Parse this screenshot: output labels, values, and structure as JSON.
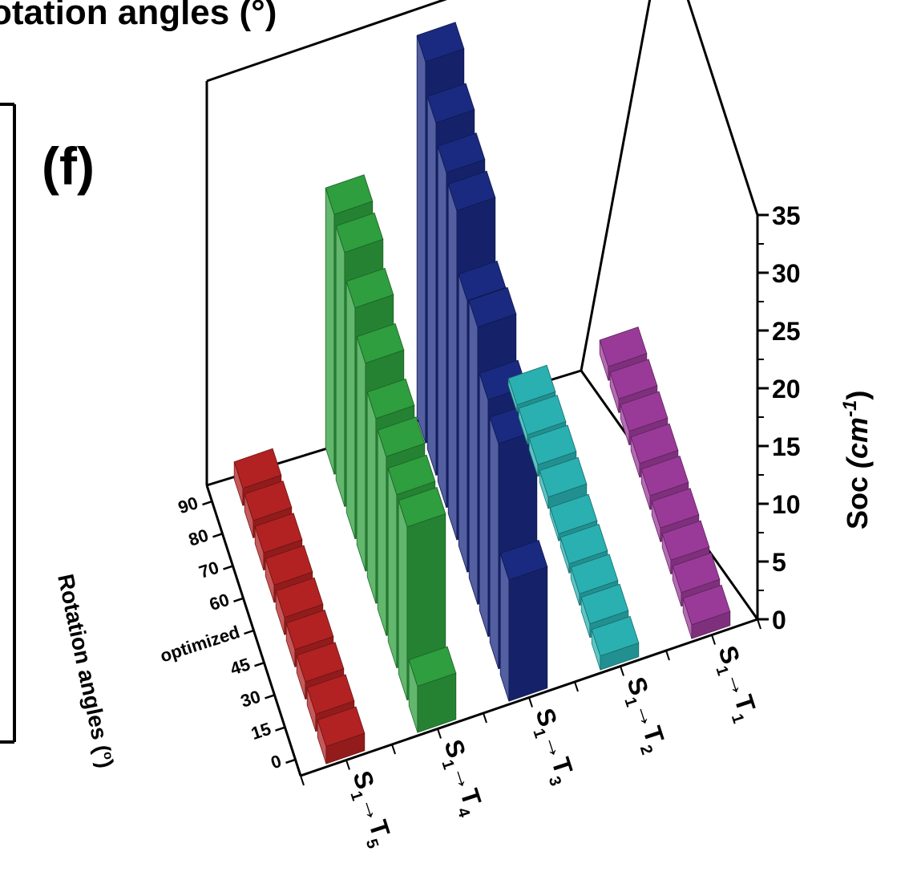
{
  "panel_label": "(f)",
  "cut_top_text": "otation angles (°)",
  "chart_data": {
    "type": "bar3d",
    "zlabel": "Soc (cm-1)",
    "zlabel_main": "Soc",
    "zlabel_unit": "(cm",
    "zlabel_exp": "-1",
    "zlabel_close": ")",
    "ylabel": "Rotation angles (°)",
    "ylabel_main": "Rotation angles (",
    "ylabel_deg": "o",
    "ylabel_close": ")",
    "zlim": [
      0,
      35
    ],
    "z_ticks": [
      "0",
      "5",
      "10",
      "15",
      "20",
      "25",
      "30",
      "35"
    ],
    "angles": [
      "0",
      "15",
      "30",
      "45",
      "optimized",
      "60",
      "70",
      "80",
      "90"
    ],
    "transitions": [
      {
        "base": "S",
        "sub1": "1",
        "arrow": "→",
        "tgt": "T",
        "sub2": "5",
        "name": "S1→T5"
      },
      {
        "base": "S",
        "sub1": "1",
        "arrow": "→",
        "tgt": "T",
        "sub2": "4",
        "name": "S1→T4"
      },
      {
        "base": "S",
        "sub1": "1",
        "arrow": "→",
        "tgt": "T",
        "sub2": "3",
        "name": "S1→T3"
      },
      {
        "base": "S",
        "sub1": "1",
        "arrow": "→",
        "tgt": "T",
        "sub2": "2",
        "name": "S1→T2"
      },
      {
        "base": "S",
        "sub1": "1",
        "arrow": "→",
        "tgt": "T",
        "sub2": "1",
        "name": "S1→T1"
      }
    ],
    "series": [
      {
        "transition": "S1→T5",
        "color": "#b22222",
        "values": [
          1.5,
          1.5,
          1.5,
          1.5,
          1.5,
          1.5,
          1.5,
          1.5,
          1.5
        ]
      },
      {
        "transition": "S1→T4",
        "color": "#2e9e3e",
        "values": [
          4.0,
          15.0,
          15.0,
          15.5,
          16.0,
          18.0,
          20.0,
          22.0,
          22.5
        ]
      },
      {
        "transition": "S1→T3",
        "color": "#1a2a80",
        "values": [
          10.5,
          19.5,
          20.5,
          24.0,
          23.5,
          28.5,
          29.0,
          30.5,
          33.0
        ]
      },
      {
        "transition": "S1→T2",
        "color": "#2ab0b0",
        "values": [
          1.2,
          1.2,
          1.0,
          0.8,
          0.6,
          1.0,
          1.0,
          0.8,
          0.6
        ]
      },
      {
        "transition": "S1→T1",
        "color": "#9a3a98",
        "values": [
          1.2,
          1.2,
          1.2,
          1.2,
          1.2,
          1.2,
          1.2,
          1.2,
          1.2
        ]
      }
    ]
  }
}
